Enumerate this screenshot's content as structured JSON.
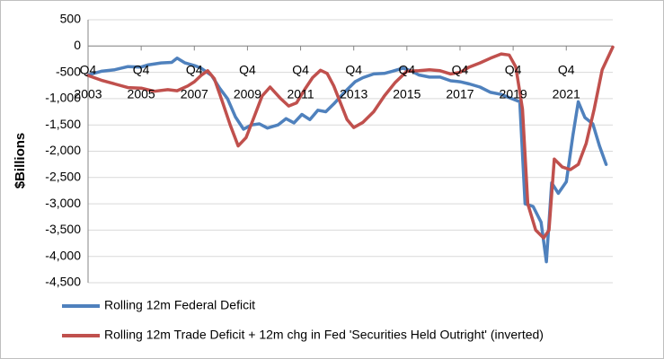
{
  "chart_data": {
    "type": "line",
    "title": "",
    "xlabel": "",
    "ylabel": "$Billions",
    "ylim": [
      -4500,
      500
    ],
    "yticks": [
      500,
      0,
      -500,
      -1000,
      -1500,
      -2000,
      -2500,
      -3000,
      -3500,
      -4000,
      -4500
    ],
    "ytick_labels": [
      "500",
      "0",
      "-500",
      "-1,000",
      "-1,500",
      "-2,000",
      "-2,500",
      "-3,000",
      "-3,500",
      "-4,000",
      "-4,500"
    ],
    "xlim": [
      2003.75,
      2023.5
    ],
    "xticks": [
      2003.75,
      2005.75,
      2007.75,
      2009.75,
      2011.75,
      2013.75,
      2015.75,
      2017.75,
      2019.75,
      2021.75
    ],
    "xtick_labels_top": [
      "Q4",
      "Q4",
      "Q4",
      "Q4",
      "Q4",
      "Q4",
      "Q4",
      "Q4",
      "Q4",
      "Q4"
    ],
    "xtick_labels_bottom": [
      "2003",
      "2005",
      "2007",
      "2009",
      "2011",
      "2013",
      "2015",
      "2017",
      "2019",
      "2021"
    ],
    "grid": "horizontal",
    "legend": "bottom",
    "series": [
      {
        "name": "Rolling 12m Federal Deficit",
        "color": "#4f81bd",
        "points": [
          [
            2003.75,
            -550
          ],
          [
            2004.25,
            -480
          ],
          [
            2004.75,
            -450
          ],
          [
            2005.25,
            -390
          ],
          [
            2005.75,
            -400
          ],
          [
            2006.0,
            -360
          ],
          [
            2006.5,
            -320
          ],
          [
            2006.9,
            -310
          ],
          [
            2007.1,
            -230
          ],
          [
            2007.4,
            -320
          ],
          [
            2007.75,
            -370
          ],
          [
            2008.0,
            -420
          ],
          [
            2008.4,
            -560
          ],
          [
            2008.7,
            -800
          ],
          [
            2009.0,
            -1000
          ],
          [
            2009.3,
            -1350
          ],
          [
            2009.6,
            -1580
          ],
          [
            2009.9,
            -1500
          ],
          [
            2010.2,
            -1480
          ],
          [
            2010.5,
            -1560
          ],
          [
            2010.9,
            -1500
          ],
          [
            2011.2,
            -1380
          ],
          [
            2011.5,
            -1460
          ],
          [
            2011.8,
            -1300
          ],
          [
            2012.1,
            -1400
          ],
          [
            2012.4,
            -1220
          ],
          [
            2012.7,
            -1250
          ],
          [
            2013.0,
            -1100
          ],
          [
            2013.4,
            -880
          ],
          [
            2013.8,
            -680
          ],
          [
            2014.1,
            -600
          ],
          [
            2014.5,
            -530
          ],
          [
            2014.9,
            -520
          ],
          [
            2015.2,
            -480
          ],
          [
            2015.6,
            -420
          ],
          [
            2015.9,
            -470
          ],
          [
            2016.2,
            -550
          ],
          [
            2016.6,
            -590
          ],
          [
            2017.0,
            -590
          ],
          [
            2017.4,
            -660
          ],
          [
            2017.75,
            -680
          ],
          [
            2018.1,
            -720
          ],
          [
            2018.5,
            -780
          ],
          [
            2018.9,
            -880
          ],
          [
            2019.3,
            -920
          ],
          [
            2019.6,
            -980
          ],
          [
            2020.0,
            -1060
          ],
          [
            2020.2,
            -3000
          ],
          [
            2020.5,
            -3050
          ],
          [
            2020.8,
            -3350
          ],
          [
            2021.0,
            -4100
          ],
          [
            2021.2,
            -2600
          ],
          [
            2021.45,
            -2800
          ],
          [
            2021.75,
            -2580
          ],
          [
            2022.0,
            -1700
          ],
          [
            2022.2,
            -1060
          ],
          [
            2022.45,
            -1360
          ],
          [
            2022.75,
            -1480
          ],
          [
            2023.0,
            -1900
          ],
          [
            2023.25,
            -2250
          ]
        ]
      },
      {
        "name": "Rolling 12m Trade Deficit + 12m chg in Fed 'Securities Held Outright' (inverted)",
        "color": "#c0504d",
        "points": [
          [
            2003.75,
            -560
          ],
          [
            2004.25,
            -650
          ],
          [
            2004.75,
            -720
          ],
          [
            2005.25,
            -790
          ],
          [
            2005.75,
            -800
          ],
          [
            2006.25,
            -860
          ],
          [
            2006.75,
            -830
          ],
          [
            2007.1,
            -850
          ],
          [
            2007.5,
            -760
          ],
          [
            2007.75,
            -680
          ],
          [
            2008.0,
            -560
          ],
          [
            2008.25,
            -470
          ],
          [
            2008.5,
            -620
          ],
          [
            2008.8,
            -1050
          ],
          [
            2009.1,
            -1500
          ],
          [
            2009.4,
            -1900
          ],
          [
            2009.7,
            -1740
          ],
          [
            2010.0,
            -1350
          ],
          [
            2010.3,
            -950
          ],
          [
            2010.6,
            -780
          ],
          [
            2011.0,
            -1000
          ],
          [
            2011.3,
            -1140
          ],
          [
            2011.6,
            -1080
          ],
          [
            2011.9,
            -830
          ],
          [
            2012.2,
            -600
          ],
          [
            2012.5,
            -460
          ],
          [
            2012.75,
            -520
          ],
          [
            2013.0,
            -760
          ],
          [
            2013.25,
            -1080
          ],
          [
            2013.5,
            -1400
          ],
          [
            2013.75,
            -1550
          ],
          [
            2014.1,
            -1450
          ],
          [
            2014.5,
            -1250
          ],
          [
            2014.9,
            -950
          ],
          [
            2015.3,
            -700
          ],
          [
            2015.75,
            -480
          ],
          [
            2016.2,
            -470
          ],
          [
            2016.6,
            -450
          ],
          [
            2017.0,
            -470
          ],
          [
            2017.4,
            -530
          ],
          [
            2017.75,
            -500
          ],
          [
            2018.1,
            -400
          ],
          [
            2018.5,
            -320
          ],
          [
            2018.9,
            -230
          ],
          [
            2019.3,
            -150
          ],
          [
            2019.6,
            -170
          ],
          [
            2019.85,
            -400
          ],
          [
            2020.1,
            -1200
          ],
          [
            2020.3,
            -3000
          ],
          [
            2020.6,
            -3500
          ],
          [
            2020.9,
            -3650
          ],
          [
            2021.1,
            -3500
          ],
          [
            2021.3,
            -2150
          ],
          [
            2021.6,
            -2300
          ],
          [
            2021.9,
            -2350
          ],
          [
            2022.2,
            -2250
          ],
          [
            2022.5,
            -1850
          ],
          [
            2022.8,
            -1200
          ],
          [
            2023.1,
            -450
          ],
          [
            2023.5,
            -20
          ]
        ]
      }
    ]
  }
}
